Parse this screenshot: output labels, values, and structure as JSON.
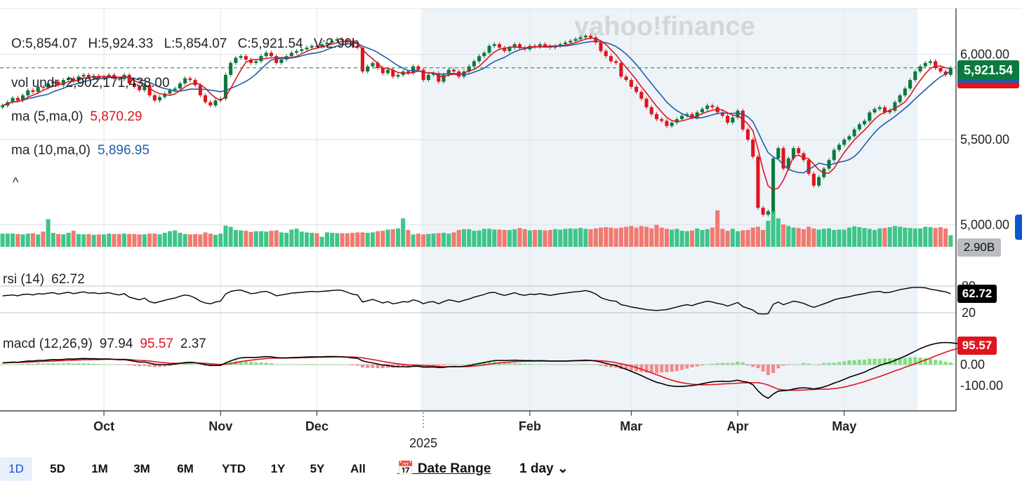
{
  "ohlc": {
    "open": "O:5,854.07",
    "high": "H:5,924.33",
    "low": "L:5,854.07",
    "close": "C:5,921.54",
    "volume": "V:2.90b"
  },
  "indicators": {
    "vol_label": "vol undr",
    "vol_value": "2,902,171,438.00",
    "ma5_label": "ma (5,ma,0)",
    "ma5_value": "5,870.29",
    "ma10_label": "ma (10,ma,0)",
    "ma10_value": "5,896.95",
    "rsi_label": "rsi (14)",
    "rsi_value": "62.72",
    "macd_label": "macd (12,26,9)",
    "macd_value": "97.94",
    "macd_signal": "95.57",
    "macd_hist": "2.37"
  },
  "collapse_glyph": "^",
  "tags": {
    "price": "5,921.54",
    "volume": "2.90B",
    "rsi": "62.72",
    "macd": "95.57"
  },
  "watermark": "yahoo!finance",
  "toolbar": {
    "ranges": [
      "1D",
      "5D",
      "1M",
      "3M",
      "6M",
      "YTD",
      "1Y",
      "5Y",
      "All"
    ],
    "active_range": "1D",
    "date_range_label": "Date Range",
    "interval_label": "1 day"
  },
  "colors": {
    "up": "#3fc58a",
    "down": "#f07a70",
    "up_candle": "#0b7a3e",
    "down_candle": "#e0141e",
    "ma5": "#e0141e",
    "ma10": "#1f5fa8",
    "shaded_region": "#eef3f8"
  },
  "chart_data": {
    "type": "candlestick",
    "price_axis": {
      "ticks": [
        "6,000.00",
        "5,500.00",
        "5,000.00"
      ],
      "tick_values": [
        6000,
        5500,
        5000
      ],
      "ylim": [
        4830,
        6270
      ]
    },
    "rsi_axis": {
      "ticks": [
        "80",
        "20"
      ],
      "tick_values": [
        80,
        20
      ],
      "ylim": [
        0,
        100
      ]
    },
    "macd_axis": {
      "ticks": [
        "0.00",
        "-100.00"
      ],
      "tick_values": [
        0,
        -100
      ],
      "ylim": [
        -180,
        180
      ]
    },
    "x_labels": [
      {
        "label": "Oct",
        "index": 20
      },
      {
        "label": "Nov",
        "index": 43
      },
      {
        "label": "Dec",
        "index": 62
      },
      {
        "label": "2025",
        "index": 83
      },
      {
        "label": "Feb",
        "index": 104
      },
      {
        "label": "Mar",
        "index": 124
      },
      {
        "label": "Apr",
        "index": 145
      },
      {
        "label": "May",
        "index": 166
      }
    ],
    "close_series": [
      5700,
      5720,
      5745,
      5730,
      5760,
      5790,
      5780,
      5810,
      5805,
      5830,
      5840,
      5820,
      5850,
      5860,
      5845,
      5870,
      5880,
      5865,
      5875,
      5860,
      5870,
      5880,
      5860,
      5855,
      5880,
      5830,
      5810,
      5790,
      5820,
      5760,
      5730,
      5750,
      5770,
      5790,
      5800,
      5830,
      5860,
      5850,
      5820,
      5760,
      5720,
      5700,
      5730,
      5740,
      5880,
      5950,
      5980,
      5990,
      5970,
      5950,
      5960,
      5990,
      6010,
      5990,
      5950,
      5970,
      5990,
      6010,
      6020,
      6030,
      6040,
      6050,
      6045,
      6060,
      6070,
      6080,
      6090,
      6085,
      6070,
      6050,
      6040,
      5900,
      5930,
      5950,
      5920,
      5890,
      5910,
      5870,
      5880,
      5900,
      5890,
      5930,
      5910,
      5850,
      5880,
      5890,
      5840,
      5880,
      5910,
      5900,
      5870,
      5900,
      5930,
      5960,
      5990,
      6010,
      6050,
      6060,
      6040,
      6020,
      6040,
      6060,
      6040,
      6030,
      6050,
      6045,
      6060,
      6050,
      6040,
      6050,
      6060,
      6070,
      6080,
      6090,
      6100,
      6110,
      6100,
      6070,
      6020,
      5990,
      5960,
      5950,
      5870,
      5850,
      5810,
      5780,
      5740,
      5690,
      5650,
      5620,
      5610,
      5580,
      5600,
      5620,
      5640,
      5650,
      5630,
      5660,
      5680,
      5700,
      5690,
      5660,
      5640,
      5600,
      5630,
      5670,
      5560,
      5500,
      5400,
      5100,
      5060,
      5080,
      5390,
      5450,
      5330,
      5390,
      5450,
      5420,
      5380,
      5300,
      5230,
      5280,
      5330,
      5380,
      5440,
      5470,
      5500,
      5520,
      5560,
      5590,
      5610,
      5660,
      5680,
      5690,
      5660,
      5670,
      5720,
      5760,
      5800,
      5850,
      5900,
      5930,
      5950,
      5960,
      5920,
      5900,
      5880,
      5921.54
    ],
    "volume_series_b": [
      3.3,
      3.3,
      3.3,
      3.2,
      3.1,
      3.3,
      3.4,
      3.1,
      3.8,
      6.9,
      3.5,
      3.2,
      3.1,
      3.5,
      4.0,
      3.2,
      3.1,
      3.2,
      3.0,
      3.1,
      3.1,
      3.3,
      3.2,
      3.2,
      3.3,
      3.2,
      3.2,
      3.1,
      3.1,
      3.3,
      3.3,
      3.1,
      3.5,
      3.9,
      4.1,
      3.5,
      3.2,
      3.1,
      3.2,
      3.1,
      3.6,
      3.3,
      3.0,
      3.3,
      5.3,
      5.0,
      4.2,
      4.1,
      4.0,
      3.7,
      3.9,
      3.9,
      3.8,
      4.0,
      4.1,
      3.6,
      3.5,
      4.3,
      4.5,
      3.8,
      3.6,
      3.5,
      3.4,
      2.5,
      3.6,
      3.5,
      3.4,
      3.4,
      3.4,
      3.5,
      3.6,
      3.6,
      3.5,
      3.6,
      3.9,
      4.0,
      4.3,
      4.4,
      4.6,
      7.1,
      4.2,
      3.1,
      3.3,
      3.1,
      3.2,
      3.3,
      3.4,
      3.5,
      3.3,
      3.6,
      4.2,
      4.4,
      4.4,
      4.0,
      4.1,
      4.5,
      4.5,
      4.3,
      4.3,
      4.2,
      4.2,
      4.4,
      4.7,
      4.4,
      4.1,
      4.2,
      4.2,
      4.1,
      4.2,
      4.4,
      4.3,
      4.5,
      4.6,
      4.5,
      4.7,
      4.5,
      4.4,
      4.6,
      4.8,
      4.9,
      4.8,
      4.6,
      4.8,
      5.0,
      5.2,
      4.8,
      5.2,
      5.0,
      4.6,
      5.5,
      4.8,
      4.5,
      4.3,
      4.5,
      4.0,
      3.9,
      4.1,
      4.6,
      4.2,
      4.4,
      4.8,
      9.1,
      4.5,
      4.0,
      4.5,
      3.9,
      4.1,
      4.2,
      4.8,
      5.0,
      4.2,
      6.5,
      9.0,
      7.1,
      5.6,
      5.2,
      4.8,
      4.7,
      4.4,
      5.0,
      4.6,
      4.3,
      4.5,
      4.6,
      4.2,
      4.3,
      4.3,
      4.8,
      5.1,
      4.9,
      4.7,
      4.5,
      4.2,
      4.6,
      4.7,
      4.9,
      5.2,
      5.0,
      4.8,
      4.7,
      4.6,
      4.6,
      5.0,
      4.9,
      4.7,
      4.9,
      4.6,
      2.9
    ],
    "rsi_series": [
      58,
      59,
      60,
      58,
      61,
      62,
      60,
      63,
      62,
      64,
      65,
      62,
      64,
      66,
      63,
      65,
      67,
      64,
      65,
      63,
      64,
      65,
      62,
      60,
      63,
      55,
      52,
      49,
      53,
      45,
      42,
      45,
      48,
      51,
      53,
      57,
      60,
      58,
      53,
      46,
      42,
      40,
      44,
      46,
      62,
      68,
      70,
      71,
      67,
      63,
      64,
      67,
      68,
      64,
      58,
      60,
      62,
      64,
      65,
      66,
      67,
      68,
      67,
      68,
      69,
      70,
      71,
      70,
      66,
      62,
      60,
      44,
      47,
      50,
      46,
      42,
      45,
      40,
      42,
      45,
      44,
      49,
      46,
      40,
      44,
      45,
      40,
      45,
      49,
      47,
      44,
      48,
      51,
      55,
      58,
      61,
      65,
      66,
      62,
      59,
      62,
      65,
      61,
      59,
      62,
      61,
      63,
      61,
      59,
      61,
      63,
      64,
      66,
      67,
      68,
      70,
      67,
      62,
      54,
      50,
      47,
      46,
      38,
      36,
      33,
      31,
      29,
      27,
      26,
      25,
      26,
      27,
      30,
      33,
      36,
      38,
      36,
      40,
      43,
      46,
      44,
      41,
      39,
      35,
      39,
      43,
      34,
      30,
      26,
      18,
      17,
      18,
      39,
      44,
      38,
      42,
      46,
      44,
      41,
      36,
      32,
      36,
      40,
      44,
      49,
      52,
      54,
      56,
      59,
      61,
      63,
      66,
      67,
      68,
      65,
      66,
      69,
      72,
      74,
      76,
      77,
      77,
      76,
      73,
      71,
      69,
      67,
      62.72
    ],
    "macd_series": [
      8,
      10,
      12,
      11,
      14,
      17,
      17,
      20,
      20,
      22,
      24,
      23,
      25,
      27,
      26,
      28,
      29,
      28,
      28,
      27,
      27,
      27,
      25,
      23,
      24,
      20,
      16,
      12,
      12,
      7,
      2,
      0,
      0,
      1,
      3,
      6,
      10,
      11,
      9,
      5,
      0,
      -4,
      -4,
      -4,
      8,
      18,
      26,
      32,
      34,
      34,
      34,
      36,
      38,
      37,
      33,
      32,
      32,
      33,
      34,
      35,
      36,
      37,
      37,
      37,
      38,
      38,
      38,
      37,
      35,
      32,
      30,
      18,
      12,
      8,
      3,
      -2,
      -4,
      -8,
      -10,
      -10,
      -11,
      -8,
      -8,
      -12,
      -12,
      -11,
      -14,
      -13,
      -10,
      -9,
      -10,
      -8,
      -5,
      0,
      5,
      10,
      15,
      19,
      20,
      19,
      20,
      21,
      20,
      19,
      19,
      18,
      19,
      18,
      17,
      17,
      17,
      17,
      18,
      19,
      20,
      21,
      20,
      17,
      12,
      6,
      0,
      -4,
      -14,
      -22,
      -32,
      -42,
      -52,
      -64,
      -74,
      -84,
      -90,
      -98,
      -102,
      -104,
      -104,
      -102,
      -100,
      -96,
      -91,
      -86,
      -82,
      -80,
      -79,
      -80,
      -78,
      -74,
      -80,
      -84,
      -96,
      -125,
      -147,
      -160,
      -140,
      -126,
      -124,
      -122,
      -116,
      -112,
      -110,
      -112,
      -116,
      -112,
      -106,
      -98,
      -88,
      -80,
      -70,
      -60,
      -52,
      -44,
      -36,
      -24,
      -14,
      -4,
      4,
      10,
      20,
      30,
      40,
      52,
      64,
      76,
      86,
      94,
      100,
      104,
      105,
      104,
      101,
      97.94
    ],
    "signal_series": [
      8,
      9,
      10,
      10,
      11,
      12,
      13,
      14,
      15,
      16,
      17,
      18,
      19,
      20,
      21,
      22,
      23,
      23,
      24,
      24,
      25,
      25,
      25,
      25,
      25,
      24,
      22,
      20,
      19,
      17,
      14,
      11,
      9,
      7,
      6,
      6,
      7,
      8,
      8,
      7,
      6,
      4,
      2,
      1,
      2,
      5,
      9,
      14,
      18,
      21,
      24,
      26,
      29,
      30,
      31,
      31,
      31,
      32,
      32,
      33,
      33,
      34,
      35,
      35,
      36,
      36,
      37,
      37,
      36,
      36,
      35,
      32,
      28,
      24,
      20,
      15,
      11,
      7,
      4,
      1,
      -1,
      -2,
      -3,
      -5,
      -6,
      -7,
      -9,
      -10,
      -10,
      -10,
      -10,
      -10,
      -9,
      -7,
      -5,
      -2,
      2,
      5,
      8,
      10,
      12,
      14,
      15,
      16,
      16,
      17,
      17,
      17,
      17,
      17,
      17,
      17,
      17,
      18,
      18,
      19,
      19,
      19,
      18,
      16,
      13,
      9,
      4,
      -1,
      -7,
      -14,
      -22,
      -30,
      -39,
      -48,
      -57,
      -66,
      -74,
      -81,
      -86,
      -90,
      -93,
      -95,
      -96,
      -96,
      -95,
      -94,
      -92,
      -91,
      -90,
      -88,
      -87,
      -86,
      -86,
      -86,
      -90,
      -97,
      -107,
      -117,
      -120,
      -122,
      -122,
      -122,
      -121,
      -119,
      -118,
      -117,
      -117,
      -116,
      -114,
      -111,
      -107,
      -101,
      -95,
      -88,
      -81,
      -73,
      -65,
      -57,
      -48,
      -39,
      -30,
      -22,
      -13,
      -4,
      4,
      13,
      22,
      31,
      41,
      50,
      59,
      67,
      74,
      81,
      87,
      91,
      95.57
    ],
    "hist_series": [
      0,
      1,
      2,
      1,
      3,
      5,
      4,
      6,
      5,
      6,
      7,
      5,
      6,
      7,
      5,
      6,
      6,
      5,
      4,
      3,
      2,
      2,
      0,
      -2,
      -1,
      -4,
      -6,
      -8,
      -7,
      -10,
      -12,
      -11,
      -9,
      -6,
      -3,
      0,
      3,
      3,
      1,
      -2,
      -6,
      -8,
      -6,
      -5,
      6,
      13,
      17,
      18,
      16,
      13,
      10,
      10,
      9,
      7,
      2,
      1,
      1,
      1,
      2,
      2,
      3,
      3,
      2,
      2,
      2,
      2,
      1,
      0,
      -1,
      -4,
      -5,
      -14,
      -16,
      -16,
      -17,
      -17,
      -15,
      -15,
      -14,
      -11,
      -10,
      -6,
      -5,
      -7,
      -6,
      -4,
      -5,
      -3,
      0,
      1,
      0,
      2,
      4,
      7,
      10,
      12,
      13,
      14,
      12,
      9,
      8,
      7,
      5,
      3,
      3,
      1,
      2,
      1,
      0,
      0,
      0,
      0,
      1,
      1,
      2,
      2,
      1,
      -2,
      -6,
      -10,
      -13,
      -15,
      -21,
      -24,
      -29,
      -32,
      -35,
      -38,
      -39,
      -41,
      -37,
      -36,
      -34,
      -30,
      -25,
      -19,
      -13,
      -9,
      -4,
      0,
      4,
      7,
      8,
      8,
      9,
      14,
      11,
      -4,
      -11,
      -17,
      -33,
      -50,
      -40,
      -18,
      -5,
      -2,
      0,
      2,
      8,
      5,
      1,
      -2,
      8,
      8,
      9,
      12,
      15,
      20,
      21,
      23,
      24,
      28,
      28,
      28,
      30,
      30,
      30,
      30,
      31,
      34,
      36,
      34,
      30,
      27,
      23,
      19,
      14,
      10,
      2.37
    ],
    "shaded_index_range": [
      83,
      180
    ]
  }
}
